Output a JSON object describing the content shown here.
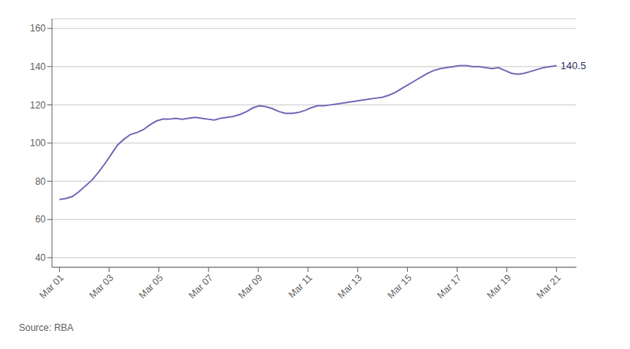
{
  "chart_data": {
    "type": "line",
    "x": [
      0,
      0.2597,
      0.5195,
      0.7792,
      1.039,
      1.2987,
      1.5584,
      1.8182,
      2.0779,
      2.3377,
      2.5974,
      2.8571,
      3.1169,
      3.3766,
      3.6364,
      3.8961,
      4.1558,
      4.4156,
      4.6753,
      4.9351,
      5.1948,
      5.4545,
      5.7143,
      5.974,
      6.2338,
      6.4935,
      6.7532,
      7.013,
      7.2727,
      7.5325,
      7.7922,
      8.0519,
      8.3117,
      8.5714,
      8.8312,
      9.0909,
      9.3506,
      9.6104,
      9.8701,
      10.1299,
      10.3896,
      10.6494,
      10.9091,
      11.1688,
      11.4286,
      11.6883,
      11.9481,
      12.2078,
      12.4675,
      12.7273,
      12.987,
      13.2468,
      13.5065,
      13.7662,
      14.026,
      14.2857,
      14.5455,
      14.8052,
      15.0649,
      15.3247,
      15.5844,
      15.8442,
      16.1039,
      16.3636,
      16.6234,
      16.8831,
      17.1429,
      17.4026,
      17.6623,
      17.9221,
      18.1818,
      18.4416,
      18.7013,
      18.961,
      19.2208,
      19.4805,
      19.7403,
      20
    ],
    "values": [
      70.5,
      71.0,
      72.0,
      74.5,
      77.5,
      80.5,
      84.5,
      89.0,
      94.0,
      99.0,
      102.0,
      104.5,
      105.5,
      107.0,
      109.5,
      111.5,
      112.5,
      112.5,
      113.0,
      112.5,
      113.0,
      113.5,
      113.0,
      112.5,
      112.0,
      113.0,
      113.5,
      114.0,
      115.0,
      116.5,
      118.5,
      119.5,
      119.0,
      118.0,
      116.5,
      115.5,
      115.5,
      116.0,
      117.0,
      118.5,
      119.5,
      119.5,
      120.0,
      120.5,
      121.0,
      121.5,
      122.0,
      122.5,
      123.0,
      123.5,
      124.0,
      125.0,
      126.5,
      128.5,
      130.5,
      132.5,
      134.5,
      136.5,
      138.0,
      139.0,
      139.5,
      140.0,
      140.5,
      140.5,
      140.0,
      140.0,
      139.5,
      139.0,
      139.5,
      138.0,
      136.5,
      136.0,
      136.5,
      137.5,
      138.5,
      139.5,
      140.0,
      140.5
    ],
    "color": "#7B6FBB",
    "xlim": [
      -0.3,
      20.8
    ],
    "xticks": [
      {
        "value": 0,
        "label": "Mar 01"
      },
      {
        "value": 2,
        "label": "Mar 03"
      },
      {
        "value": 4,
        "label": "Mar 05"
      },
      {
        "value": 6,
        "label": "Mar 07"
      },
      {
        "value": 8,
        "label": "Mar 09"
      },
      {
        "value": 10,
        "label": "Mar 11"
      },
      {
        "value": 12,
        "label": "Mar 13"
      },
      {
        "value": 14,
        "label": "Mar 15"
      },
      {
        "value": 16,
        "label": "Mar 17"
      },
      {
        "value": 18,
        "label": "Mar 19"
      },
      {
        "value": 20,
        "label": "Mar 21"
      }
    ],
    "ylim": [
      35,
      165
    ],
    "yticks": [
      40,
      60,
      80,
      100,
      120,
      140,
      160
    ],
    "grid": true,
    "annotations": [
      {
        "text": "140.5",
        "x": 20,
        "y": 140.5
      },
      {
        "text": "Source: RBA"
      }
    ]
  }
}
